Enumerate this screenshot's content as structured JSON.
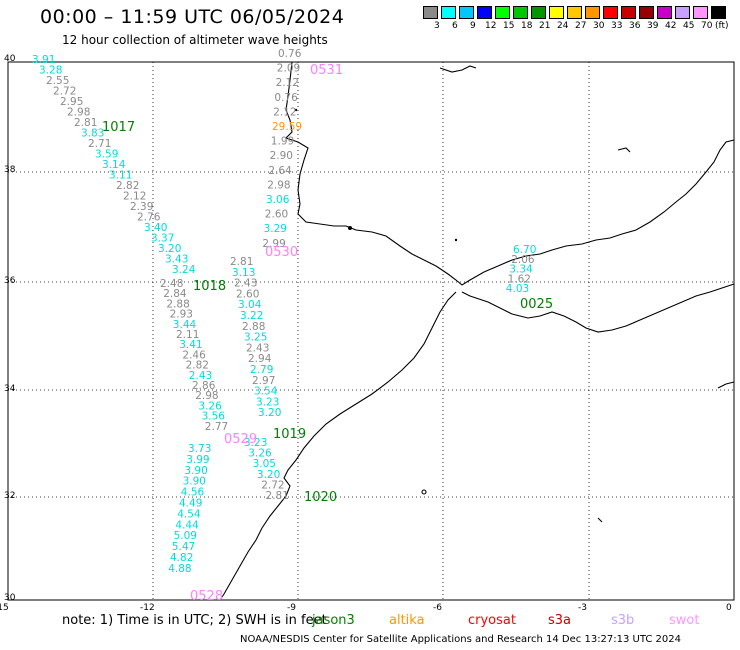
{
  "header": {
    "title": "00:00 – 11:59 UTC 06/05/2024",
    "subtitle": "12 hour collection of altimeter wave heights"
  },
  "legend": {
    "unit": "(ft)",
    "bins": [
      {
        "label": "3",
        "color": "#8a8a8a"
      },
      {
        "label": "6",
        "color": "#00ffff"
      },
      {
        "label": "9",
        "color": "#00c8ff"
      },
      {
        "label": "12",
        "color": "#0000ff"
      },
      {
        "label": "15",
        "color": "#00ff00"
      },
      {
        "label": "18",
        "color": "#00c800"
      },
      {
        "label": "21",
        "color": "#009600"
      },
      {
        "label": "24",
        "color": "#ffff00"
      },
      {
        "label": "27",
        "color": "#ffc800"
      },
      {
        "label": "30",
        "color": "#ff9600"
      },
      {
        "label": "33",
        "color": "#ff0000"
      },
      {
        "label": "36",
        "color": "#c80000"
      },
      {
        "label": "39",
        "color": "#960000"
      },
      {
        "label": "42",
        "color": "#c800c8"
      },
      {
        "label": "45",
        "color": "#c8a0ff"
      },
      {
        "label": "70",
        "color": "#ff96ff"
      },
      {
        "label": "",
        "color": "#000000"
      }
    ]
  },
  "axes": {
    "lon_ticks": [
      "-15",
      "-12",
      "-9",
      "-6",
      "-3",
      "0"
    ],
    "lat_ticks": [
      "40",
      "38",
      "36",
      "34",
      "32",
      "30"
    ]
  },
  "tracks": [
    {
      "id": "0531",
      "label_color": "#ff80ff",
      "points": [
        {
          "v": "0.76",
          "c": "#8a8a8a"
        },
        {
          "v": "2.09",
          "c": "#8a8a8a"
        },
        {
          "v": "2.12",
          "c": "#8a8a8a"
        },
        {
          "v": "0.76",
          "c": "#8a8a8a"
        },
        {
          "v": "2.12",
          "c": "#8a8a8a"
        },
        {
          "v": "29.59",
          "c": "#ff9600"
        },
        {
          "v": "1.99",
          "c": "#8a8a8a"
        },
        {
          "v": "2.90",
          "c": "#8a8a8a"
        },
        {
          "v": "2.64",
          "c": "#8a8a8a"
        },
        {
          "v": "2.98",
          "c": "#8a8a8a"
        },
        {
          "v": "3.06",
          "c": "#00dcdc"
        },
        {
          "v": "2.60",
          "c": "#8a8a8a"
        },
        {
          "v": "3.29",
          "c": "#00dcdc"
        },
        {
          "v": "2.99",
          "c": "#8a8a8a"
        }
      ]
    },
    {
      "id": "1017",
      "label_color": "#008000",
      "points": [
        {
          "v": "3.91",
          "c": "#00dcdc"
        },
        {
          "v": "3.28",
          "c": "#00dcdc"
        },
        {
          "v": "2.55",
          "c": "#8a8a8a"
        },
        {
          "v": "2.72",
          "c": "#8a8a8a"
        },
        {
          "v": "2.95",
          "c": "#8a8a8a"
        },
        {
          "v": "2.98",
          "c": "#8a8a8a"
        },
        {
          "v": "2.81",
          "c": "#8a8a8a"
        },
        {
          "v": "3.83",
          "c": "#00dcdc"
        },
        {
          "v": "2.71",
          "c": "#8a8a8a"
        },
        {
          "v": "3.59",
          "c": "#00dcdc"
        },
        {
          "v": "3.14",
          "c": "#00dcdc"
        },
        {
          "v": "3.11",
          "c": "#00dcdc"
        },
        {
          "v": "2.82",
          "c": "#8a8a8a"
        },
        {
          "v": "2.12",
          "c": "#8a8a8a"
        },
        {
          "v": "2.39",
          "c": "#8a8a8a"
        },
        {
          "v": "2.76",
          "c": "#8a8a8a"
        },
        {
          "v": "3.40",
          "c": "#00dcdc"
        },
        {
          "v": "3.37",
          "c": "#00dcdc"
        },
        {
          "v": "3.20",
          "c": "#00dcdc"
        },
        {
          "v": "3.43",
          "c": "#00dcdc"
        },
        {
          "v": "3.24",
          "c": "#00dcdc"
        }
      ]
    },
    {
      "id": "0530",
      "label_color": "#ff80ff",
      "points": [
        {
          "v": "2.81",
          "c": "#8a8a8a"
        },
        {
          "v": "3.13",
          "c": "#00dcdc"
        },
        {
          "v": "2.43",
          "c": "#8a8a8a"
        },
        {
          "v": "2.60",
          "c": "#8a8a8a"
        },
        {
          "v": "3.04",
          "c": "#00dcdc"
        },
        {
          "v": "3.22",
          "c": "#00dcdc"
        },
        {
          "v": "2.88",
          "c": "#8a8a8a"
        },
        {
          "v": "3.25",
          "c": "#00dcdc"
        },
        {
          "v": "2.43",
          "c": "#8a8a8a"
        },
        {
          "v": "2.94",
          "c": "#8a8a8a"
        },
        {
          "v": "2.79",
          "c": "#00dcdc"
        },
        {
          "v": "2.97",
          "c": "#8a8a8a"
        },
        {
          "v": "3.54",
          "c": "#00dcdc"
        },
        {
          "v": "3.23",
          "c": "#00dcdc"
        },
        {
          "v": "3.20",
          "c": "#00dcdc"
        }
      ]
    },
    {
      "id": "1018",
      "label_color": "#008000",
      "points": [
        {
          "v": "2.48",
          "c": "#8a8a8a"
        },
        {
          "v": "2.84",
          "c": "#8a8a8a"
        },
        {
          "v": "2.88",
          "c": "#8a8a8a"
        },
        {
          "v": "2.93",
          "c": "#8a8a8a"
        },
        {
          "v": "3.44",
          "c": "#00dcdc"
        },
        {
          "v": "2.11",
          "c": "#8a8a8a"
        },
        {
          "v": "3.41",
          "c": "#00dcdc"
        },
        {
          "v": "2.46",
          "c": "#8a8a8a"
        },
        {
          "v": "2.82",
          "c": "#8a8a8a"
        },
        {
          "v": "2.43",
          "c": "#00dcdc"
        },
        {
          "v": "2.86",
          "c": "#8a8a8a"
        },
        {
          "v": "2.98",
          "c": "#8a8a8a"
        },
        {
          "v": "3.26",
          "c": "#00dcdc"
        },
        {
          "v": "3.56",
          "c": "#00dcdc"
        },
        {
          "v": "2.77",
          "c": "#8a8a8a"
        }
      ]
    },
    {
      "id": "0529",
      "label_color": "#ff80ff",
      "points": [
        {
          "v": "3.23",
          "c": "#00dcdc"
        },
        {
          "v": "3.26",
          "c": "#00dcdc"
        },
        {
          "v": "3.05",
          "c": "#00dcdc"
        },
        {
          "v": "3.20",
          "c": "#00dcdc"
        },
        {
          "v": "2.72",
          "c": "#8a8a8a"
        },
        {
          "v": "2.81",
          "c": "#8a8a8a"
        }
      ]
    },
    {
      "id": "1019",
      "label_color": "#008000",
      "points": [
        {
          "v": "3.73",
          "c": "#00dcdc"
        },
        {
          "v": "3.99",
          "c": "#00dcdc"
        },
        {
          "v": "3.90",
          "c": "#00dcdc"
        },
        {
          "v": "3.90",
          "c": "#00dcdc"
        },
        {
          "v": "4.56",
          "c": "#00dcdc"
        },
        {
          "v": "4.49",
          "c": "#00dcdc"
        },
        {
          "v": "4.54",
          "c": "#00dcdc"
        },
        {
          "v": "4.44",
          "c": "#00dcdc"
        },
        {
          "v": "5.09",
          "c": "#00dcdc"
        },
        {
          "v": "5.47",
          "c": "#00dcdc"
        },
        {
          "v": "4.82",
          "c": "#00dcdc"
        },
        {
          "v": "4.88",
          "c": "#00dcdc"
        }
      ]
    },
    {
      "id": "0025",
      "label_color": "#008000",
      "points": [
        {
          "v": "6.70",
          "c": "#00dcdc"
        },
        {
          "v": "2.06",
          "c": "#8a8a8a"
        },
        {
          "v": "3.34",
          "c": "#00dcdc"
        },
        {
          "v": "1.62",
          "c": "#8a8a8a"
        },
        {
          "v": "4.03",
          "c": "#00dcdc"
        }
      ]
    }
  ],
  "track_labels": [
    {
      "id": "0531",
      "c": "#ff80ff"
    },
    {
      "id": "1017",
      "c": "#008000"
    },
    {
      "id": "0530",
      "c": "#ff80ff"
    },
    {
      "id": "1018",
      "c": "#008000"
    },
    {
      "id": "0529",
      "c": "#ff80ff"
    },
    {
      "id": "1019",
      "c": "#008000"
    },
    {
      "id": "1020",
      "c": "#008000"
    },
    {
      "id": "0528",
      "c": "#ff80ff"
    },
    {
      "id": "0025",
      "c": "#008000"
    }
  ],
  "footer": {
    "note": "note:  1) Time is in UTC; 2) SWH is in feet",
    "missions": [
      {
        "name": "jason3",
        "color": "#008000"
      },
      {
        "name": "altika",
        "color": "#ff9600"
      },
      {
        "name": "cryosat",
        "color": "#ff0000"
      },
      {
        "name": "s3a",
        "color": "#c80000"
      },
      {
        "name": "s3b",
        "color": "#c8a0ff"
      },
      {
        "name": "swot",
        "color": "#ff96ff"
      }
    ],
    "credit": "NOAA/NESDIS Center for Satellite Applications and Research     14 Dec 13:27:13 UTC 2024"
  }
}
